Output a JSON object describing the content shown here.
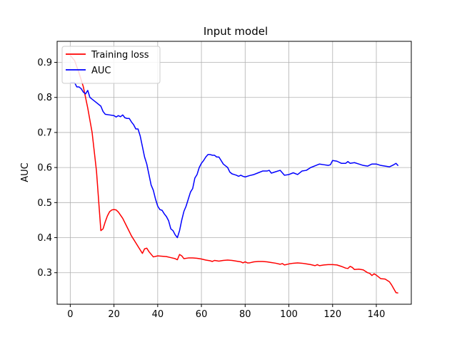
{
  "chart_data": {
    "type": "line",
    "title": "Input model",
    "xlabel": "",
    "ylabel": "AUC",
    "xlim": [
      -6,
      156
    ],
    "ylim": [
      0.21,
      0.96
    ],
    "xticks": [
      0,
      20,
      40,
      60,
      80,
      100,
      120,
      140
    ],
    "yticks": [
      0.3,
      0.4,
      0.5,
      0.6,
      0.7,
      0.8,
      0.9
    ],
    "grid": true,
    "legend_position": "top-left",
    "series": [
      {
        "name": "Training loss",
        "color": "#ff0000",
        "x": [
          0,
          2,
          4,
          6,
          8,
          10,
          12,
          14,
          15,
          16,
          17,
          18,
          19,
          20,
          21,
          22,
          24,
          26,
          28,
          30,
          32,
          33,
          34,
          35,
          36,
          38,
          40,
          42,
          44,
          46,
          48,
          49,
          50,
          51,
          52,
          54,
          56,
          58,
          60,
          62,
          64,
          65,
          66,
          68,
          70,
          72,
          74,
          76,
          78,
          79,
          80,
          81,
          82,
          84,
          86,
          88,
          90,
          92,
          94,
          96,
          97,
          98,
          100,
          102,
          104,
          106,
          108,
          110,
          112,
          113,
          114,
          116,
          118,
          120,
          122,
          124,
          126,
          127,
          128,
          129,
          130,
          132,
          134,
          136,
          137,
          138,
          139,
          140,
          142,
          144,
          146,
          147,
          148,
          149,
          150
        ],
        "values": [
          0.92,
          0.905,
          0.87,
          0.83,
          0.77,
          0.7,
          0.59,
          0.42,
          0.425,
          0.445,
          0.462,
          0.474,
          0.479,
          0.48,
          0.479,
          0.473,
          0.455,
          0.43,
          0.405,
          0.385,
          0.365,
          0.355,
          0.368,
          0.37,
          0.36,
          0.345,
          0.348,
          0.347,
          0.346,
          0.343,
          0.34,
          0.337,
          0.352,
          0.348,
          0.34,
          0.342,
          0.342,
          0.341,
          0.339,
          0.336,
          0.334,
          0.332,
          0.335,
          0.333,
          0.335,
          0.336,
          0.335,
          0.333,
          0.331,
          0.328,
          0.331,
          0.328,
          0.328,
          0.331,
          0.332,
          0.332,
          0.331,
          0.329,
          0.327,
          0.324,
          0.326,
          0.322,
          0.325,
          0.327,
          0.328,
          0.327,
          0.325,
          0.323,
          0.32,
          0.323,
          0.32,
          0.322,
          0.323,
          0.323,
          0.322,
          0.318,
          0.313,
          0.312,
          0.318,
          0.315,
          0.309,
          0.31,
          0.308,
          0.3,
          0.298,
          0.292,
          0.297,
          0.293,
          0.283,
          0.282,
          0.274,
          0.265,
          0.254,
          0.243,
          0.242
        ]
      },
      {
        "name": "AUC",
        "color": "#0000ff",
        "x": [
          0,
          1,
          2,
          3,
          4,
          5,
          6,
          7,
          8,
          9,
          10,
          12,
          14,
          15,
          16,
          18,
          20,
          21,
          22,
          23,
          24,
          25,
          26,
          27,
          28,
          29,
          30,
          31,
          32,
          33,
          34,
          35,
          36,
          37,
          38,
          39,
          40,
          41,
          42,
          43,
          44,
          45,
          46,
          47,
          48,
          49,
          50,
          51,
          52,
          53,
          54,
          55,
          56,
          57,
          58,
          59,
          60,
          61,
          62,
          63,
          64,
          65,
          66,
          67,
          68,
          69,
          70,
          71,
          72,
          73,
          74,
          75,
          76,
          77,
          78,
          79,
          80,
          82,
          84,
          86,
          88,
          90,
          91,
          92,
          94,
          96,
          98,
          100,
          102,
          104,
          106,
          108,
          110,
          112,
          114,
          116,
          118,
          119,
          120,
          122,
          124,
          126,
          127,
          128,
          130,
          132,
          134,
          136,
          138,
          140,
          142,
          144,
          146,
          148,
          149,
          150
        ],
        "values": [
          0.842,
          0.842,
          0.842,
          0.83,
          0.83,
          0.825,
          0.815,
          0.81,
          0.82,
          0.8,
          0.795,
          0.785,
          0.775,
          0.76,
          0.752,
          0.75,
          0.748,
          0.744,
          0.748,
          0.745,
          0.75,
          0.742,
          0.74,
          0.74,
          0.73,
          0.722,
          0.71,
          0.71,
          0.69,
          0.66,
          0.63,
          0.61,
          0.58,
          0.55,
          0.535,
          0.51,
          0.49,
          0.48,
          0.478,
          0.468,
          0.46,
          0.448,
          0.425,
          0.42,
          0.408,
          0.4,
          0.42,
          0.45,
          0.475,
          0.49,
          0.51,
          0.53,
          0.54,
          0.57,
          0.58,
          0.6,
          0.612,
          0.62,
          0.63,
          0.637,
          0.637,
          0.635,
          0.635,
          0.63,
          0.63,
          0.62,
          0.61,
          0.605,
          0.6,
          0.587,
          0.582,
          0.58,
          0.578,
          0.575,
          0.578,
          0.575,
          0.573,
          0.577,
          0.58,
          0.585,
          0.59,
          0.59,
          0.592,
          0.584,
          0.588,
          0.592,
          0.578,
          0.58,
          0.585,
          0.58,
          0.59,
          0.592,
          0.6,
          0.605,
          0.61,
          0.608,
          0.606,
          0.608,
          0.62,
          0.618,
          0.612,
          0.612,
          0.617,
          0.612,
          0.614,
          0.61,
          0.606,
          0.604,
          0.61,
          0.61,
          0.606,
          0.604,
          0.602,
          0.608,
          0.612,
          0.605
        ]
      }
    ]
  }
}
